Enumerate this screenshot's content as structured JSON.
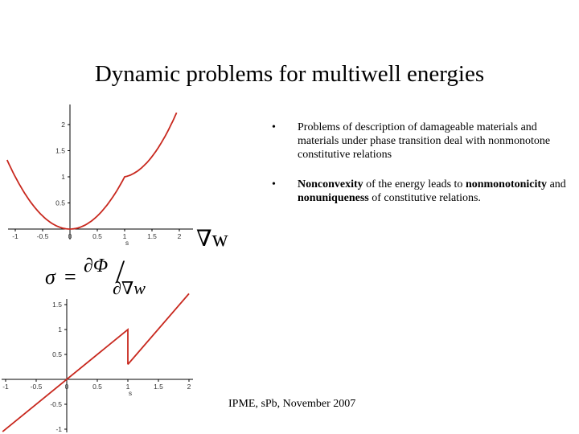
{
  "title": "Dynamic problems for multiwell energies",
  "top_plot": {
    "x_ticks": [
      "-1",
      "-0.5",
      "0",
      "0.5",
      "1",
      "1.5",
      "2"
    ],
    "y_ticks": [
      "2",
      "1.5",
      "1",
      "0.5"
    ],
    "x_axis_symbol": "s",
    "label": "∇w"
  },
  "bottom_plot": {
    "x_ticks": [
      "-1",
      "-0.5",
      "0",
      "0.5",
      "1",
      "1.5",
      "2"
    ],
    "y_ticks": [
      "1.5",
      "1",
      "0.5",
      "-0.5",
      "-1"
    ],
    "x_axis_symbol": "s"
  },
  "formula": {
    "sigma": "σ",
    "equals": "=",
    "numerator": "∂Φ",
    "denominator": "∂∇w"
  },
  "bullets": [
    {
      "marker": "•",
      "segments": [
        {
          "text": "Problems of description of damageable materials and materials under phase transition deal with nonmonotone constitutive relations",
          "bold": false
        }
      ]
    },
    {
      "marker": "•",
      "segments": [
        {
          "text": "Nonconvexity",
          "bold": true
        },
        {
          "text": " of the energy leads to ",
          "bold": false
        },
        {
          "text": "nonmonotonicity",
          "bold": true
        },
        {
          "text": " and ",
          "bold": false
        },
        {
          "text": "nonuniqueness",
          "bold": true
        },
        {
          "text": " of constitutive relations.",
          "bold": false
        }
      ]
    }
  ],
  "footer": "IPME, sPb, November 2007",
  "colors": {
    "curve": "#c8281e",
    "axes": "#000000",
    "background": "#ffffff"
  }
}
